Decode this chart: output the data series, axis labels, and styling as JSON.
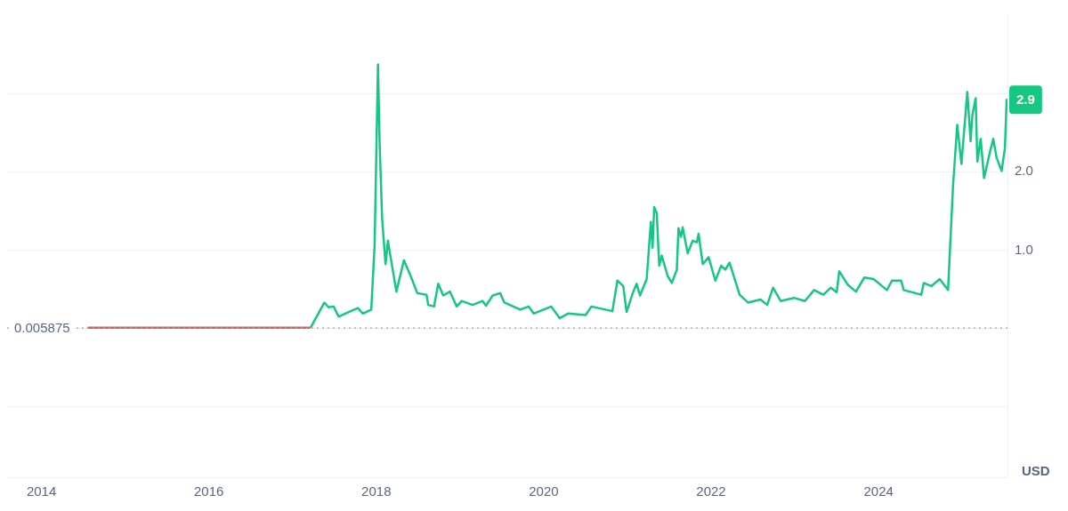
{
  "chart_data": {
    "type": "line",
    "ylabel": "USD",
    "xlim": [
      2013.59,
      2025.54
    ],
    "xticks": [
      2014,
      2016,
      2018,
      2020,
      2022,
      2024
    ],
    "ylim": [
      -1.9,
      4.0
    ],
    "yticks": [
      {
        "value": -1,
        "label": null
      },
      {
        "value": 0,
        "label": null
      },
      {
        "value": 1,
        "label": "1.0"
      },
      {
        "value": 2,
        "label": "2.0"
      },
      {
        "value": 3,
        "label": null
      }
    ],
    "grid": "y",
    "legend": false,
    "marker": "none",
    "line_style": "solid",
    "ref_lines": [
      {
        "axis": "y",
        "value": 0.005875,
        "label": "0.005875",
        "line_style": "dotted",
        "color": "#9aa1ab"
      }
    ],
    "series": [
      {
        "color": "#d1605a",
        "x": [
          2014.56,
          2015.9,
          2017.2
        ],
        "values": [
          0.01,
          0.01,
          0.01
        ]
      },
      {
        "color": "#16c784",
        "x": [
          2017.22,
          2017.38,
          2017.43,
          2017.49,
          2017.55,
          2017.67,
          2017.78,
          2017.84,
          2017.94,
          2017.98,
          2018.02,
          2018.04,
          2018.07,
          2018.11,
          2018.14,
          2018.16,
          2018.24,
          2018.33,
          2018.41,
          2018.49,
          2018.6,
          2018.62,
          2018.69,
          2018.74,
          2018.8,
          2018.88,
          2018.96,
          2019.02,
          2019.15,
          2019.27,
          2019.31,
          2019.39,
          2019.48,
          2019.53,
          2019.72,
          2019.82,
          2019.88,
          2020.09,
          2020.19,
          2020.29,
          2020.5,
          2020.57,
          2020.82,
          2020.88,
          2020.95,
          2020.99,
          2021.07,
          2021.11,
          2021.15,
          2021.23,
          2021.28,
          2021.3,
          2021.32,
          2021.35,
          2021.38,
          2021.41,
          2021.48,
          2021.53,
          2021.59,
          2021.61,
          2021.64,
          2021.66,
          2021.72,
          2021.78,
          2021.83,
          2021.85,
          2021.9,
          2021.97,
          2022.05,
          2022.12,
          2022.17,
          2022.22,
          2022.34,
          2022.44,
          2022.59,
          2022.67,
          2022.74,
          2022.83,
          2022.99,
          2023.12,
          2023.23,
          2023.34,
          2023.43,
          2023.5,
          2023.53,
          2023.63,
          2023.73,
          2023.83,
          2023.94,
          2024.1,
          2024.16,
          2024.27,
          2024.3,
          2024.51,
          2024.54,
          2024.63,
          2024.73,
          2024.83,
          2024.89,
          2024.94,
          2024.99,
          2025.06,
          2025.1,
          2025.12,
          2025.16,
          2025.18,
          2025.22,
          2025.26,
          2025.33,
          2025.37,
          2025.41,
          2025.47,
          2025.51,
          2025.53
        ],
        "values": [
          0.02,
          0.33,
          0.27,
          0.28,
          0.15,
          0.21,
          0.26,
          0.19,
          0.24,
          1.06,
          3.37,
          2.36,
          1.4,
          0.82,
          1.12,
          0.98,
          0.47,
          0.87,
          0.67,
          0.45,
          0.43,
          0.3,
          0.28,
          0.57,
          0.42,
          0.47,
          0.28,
          0.35,
          0.3,
          0.35,
          0.29,
          0.42,
          0.45,
          0.33,
          0.24,
          0.28,
          0.19,
          0.28,
          0.13,
          0.19,
          0.17,
          0.28,
          0.22,
          0.61,
          0.54,
          0.21,
          0.47,
          0.57,
          0.42,
          0.63,
          1.36,
          1.03,
          1.55,
          1.47,
          0.8,
          0.93,
          0.67,
          0.58,
          0.75,
          1.28,
          1.17,
          1.29,
          0.96,
          1.12,
          1.1,
          1.21,
          0.82,
          0.91,
          0.61,
          0.8,
          0.75,
          0.84,
          0.43,
          0.33,
          0.37,
          0.3,
          0.52,
          0.35,
          0.39,
          0.35,
          0.49,
          0.43,
          0.52,
          0.46,
          0.73,
          0.56,
          0.47,
          0.65,
          0.63,
          0.49,
          0.61,
          0.61,
          0.49,
          0.43,
          0.58,
          0.54,
          0.63,
          0.49,
          1.83,
          2.6,
          2.1,
          3.02,
          2.39,
          2.72,
          2.94,
          2.13,
          2.42,
          1.92,
          2.25,
          2.42,
          2.18,
          2.01,
          2.31,
          2.92
        ],
        "value_labels": [
          null,
          null,
          null,
          null,
          null,
          null,
          null,
          null,
          null,
          null,
          null,
          null,
          null,
          null,
          null,
          null,
          null,
          null,
          null,
          null,
          null,
          null,
          null,
          null,
          null,
          null,
          null,
          null,
          null,
          null,
          null,
          null,
          null,
          null,
          null,
          null,
          null,
          null,
          null,
          null,
          null,
          null,
          null,
          null,
          null,
          null,
          null,
          null,
          null,
          null,
          null,
          null,
          null,
          null,
          null,
          null,
          null,
          null,
          null,
          null,
          null,
          null,
          null,
          null,
          null,
          null,
          null,
          null,
          null,
          null,
          null,
          null,
          null,
          null,
          null,
          null,
          null,
          null,
          null,
          null,
          null,
          null,
          null,
          null,
          null,
          null,
          null,
          null,
          null,
          null,
          null,
          null,
          null,
          null,
          null,
          null,
          null,
          null,
          null,
          null,
          null,
          null,
          null,
          null,
          null,
          null,
          null,
          null,
          null,
          null,
          null,
          null,
          null,
          "2.9"
        ]
      }
    ]
  }
}
